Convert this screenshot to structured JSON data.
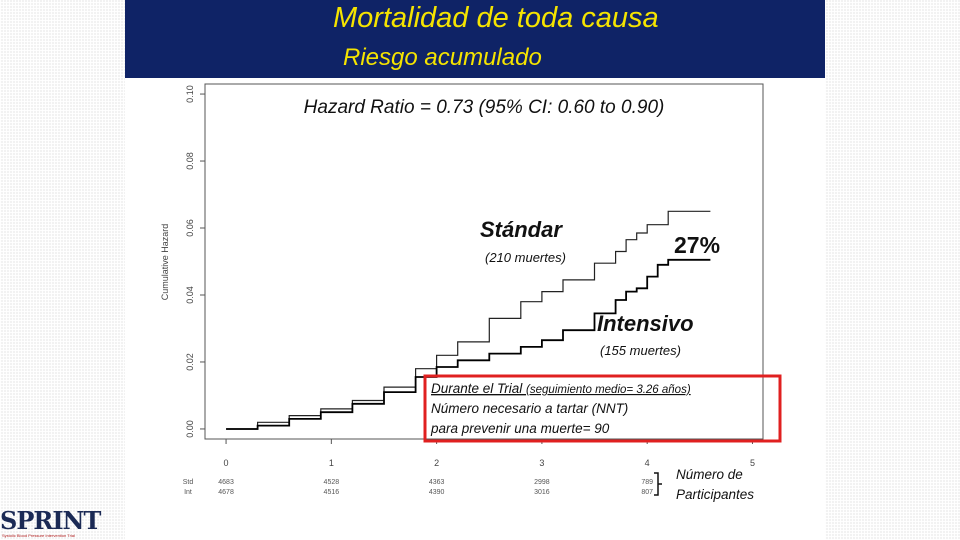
{
  "header": {
    "title": "Mortalidad de toda causa",
    "subtitle": "Riesgo acumulado"
  },
  "chart_data": {
    "type": "line",
    "title": "Hazard Ratio = 0.73 (95% CI: 0.60 to 0.90)",
    "ylabel": "Cumulative Hazard",
    "xlabel": "",
    "xlim": [
      -0.2,
      5.1
    ],
    "ylim": [
      -0.003,
      0.103
    ],
    "x_ticks": [
      0,
      1,
      2,
      3,
      4,
      5
    ],
    "y_ticks": [
      0.0,
      0.02,
      0.04,
      0.06,
      0.08,
      0.1
    ],
    "y_tick_labels": [
      "0.00",
      "0.02",
      "0.04",
      "0.06",
      "0.08",
      "0.10"
    ],
    "grid": false,
    "series": [
      {
        "name": "Stándar",
        "x": [
          0.0,
          0.3,
          0.6,
          0.9,
          1.2,
          1.5,
          1.8,
          2.0,
          2.2,
          2.5,
          2.8,
          3.0,
          3.2,
          3.5,
          3.7,
          3.8,
          3.9,
          4.0,
          4.1,
          4.2,
          4.3,
          4.6
        ],
        "y": [
          0.0,
          0.002,
          0.004,
          0.006,
          0.0085,
          0.0125,
          0.018,
          0.022,
          0.026,
          0.033,
          0.038,
          0.041,
          0.0445,
          0.0495,
          0.053,
          0.0565,
          0.0585,
          0.061,
          0.061,
          0.065,
          0.065,
          0.065
        ]
      },
      {
        "name": "Intensivo",
        "x": [
          0.0,
          0.3,
          0.6,
          0.9,
          1.2,
          1.5,
          1.8,
          2.0,
          2.2,
          2.5,
          2.8,
          3.0,
          3.2,
          3.5,
          3.7,
          3.8,
          3.9,
          4.0,
          4.1,
          4.2,
          4.3,
          4.6
        ],
        "y": [
          0.0,
          0.001,
          0.003,
          0.005,
          0.0075,
          0.011,
          0.0155,
          0.0185,
          0.0205,
          0.0225,
          0.0245,
          0.0265,
          0.0295,
          0.0345,
          0.0385,
          0.041,
          0.042,
          0.0455,
          0.049,
          0.0505,
          0.0505,
          0.0505
        ]
      }
    ],
    "annotations": {
      "standard_label": "Stándar",
      "standard_deaths": "(210 muertes)",
      "reduction": "27%",
      "intensive_label": "Intensivo",
      "intensive_deaths": "(155 muertes)"
    },
    "risk_table": {
      "rows": [
        {
          "label": "Std",
          "values": [
            "4683",
            "4528",
            "4363",
            "2998",
            "789"
          ]
        },
        {
          "label": "Int",
          "values": [
            "4678",
            "4516",
            "4390",
            "3016",
            "807"
          ]
        }
      ],
      "x": [
        0,
        1,
        2,
        3,
        4
      ]
    }
  },
  "callout": {
    "line1_main": "Durante el Trial ",
    "line1_small": "(seguimiento medio= 3.26 años)",
    "line2": "Número necesario a tartar (NNT)",
    "line3": "para prevenir una muerte= 90",
    "border_color": "#e02020"
  },
  "participants_note": {
    "line1": "Número de",
    "line2": "Participantes"
  },
  "logo": {
    "text": "SPRINT",
    "tagline": "Systolic Blood Pressure Intervention Trial"
  }
}
